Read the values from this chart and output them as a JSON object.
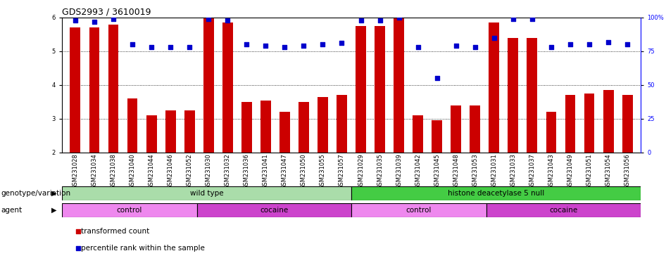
{
  "title": "GDS2993 / 3610019",
  "samples": [
    "GSM231028",
    "GSM231034",
    "GSM231038",
    "GSM231040",
    "GSM231044",
    "GSM231046",
    "GSM231052",
    "GSM231030",
    "GSM231032",
    "GSM231036",
    "GSM231041",
    "GSM231047",
    "GSM231050",
    "GSM231055",
    "GSM231057",
    "GSM231029",
    "GSM231035",
    "GSM231039",
    "GSM231042",
    "GSM231045",
    "GSM231048",
    "GSM231053",
    "GSM231031",
    "GSM231033",
    "GSM231037",
    "GSM231043",
    "GSM231049",
    "GSM231051",
    "GSM231054",
    "GSM231056"
  ],
  "red_values": [
    5.7,
    5.7,
    5.8,
    3.6,
    3.1,
    3.25,
    3.25,
    6.0,
    5.85,
    3.5,
    3.55,
    3.2,
    3.5,
    3.65,
    3.7,
    5.75,
    5.75,
    6.0,
    3.1,
    2.95,
    3.4,
    3.4,
    5.85,
    5.4,
    5.4,
    3.2,
    3.7,
    3.75,
    3.85,
    3.7
  ],
  "blue_values": [
    98,
    97,
    99,
    80,
    78,
    78,
    78,
    99,
    98,
    80,
    79,
    78,
    79,
    80,
    81,
    98,
    98,
    100,
    78,
    55,
    79,
    78,
    85,
    99,
    99,
    78,
    80,
    80,
    82,
    80
  ],
  "ylim_left": [
    2.0,
    6.0
  ],
  "ylim_right": [
    0,
    100
  ],
  "yticks_left": [
    2,
    3,
    4,
    5,
    6
  ],
  "yticks_right": [
    0,
    25,
    50,
    75,
    100
  ],
  "bar_color": "#cc0000",
  "dot_color": "#0000cc",
  "bar_bottom": 2.0,
  "genotype_groups": [
    {
      "label": "wild type",
      "start": 0,
      "end": 15,
      "color": "#aaddaa"
    },
    {
      "label": "histone deacetylase 5 null",
      "start": 15,
      "end": 30,
      "color": "#44cc44"
    }
  ],
  "agent_groups": [
    {
      "label": "control",
      "start": 0,
      "end": 7,
      "color": "#ee88ee"
    },
    {
      "label": "cocaine",
      "start": 7,
      "end": 15,
      "color": "#cc44cc"
    },
    {
      "label": "control",
      "start": 15,
      "end": 22,
      "color": "#ee88ee"
    },
    {
      "label": "cocaine",
      "start": 22,
      "end": 30,
      "color": "#cc44cc"
    }
  ],
  "legend_red_label": "transformed count",
  "legend_blue_label": "percentile rank within the sample",
  "genotype_label": "genotype/variation",
  "agent_label": "agent",
  "tick_fontsize": 6.0,
  "label_fontsize": 7.5,
  "title_fontsize": 9,
  "legend_fontsize": 7.5
}
